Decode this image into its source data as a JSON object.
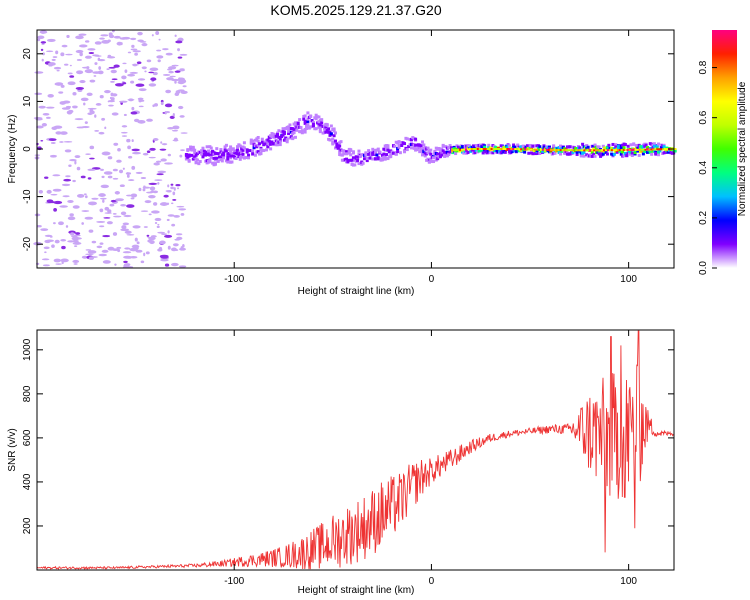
{
  "figure": {
    "title": "KOM5.2025.129.21.37.G20"
  },
  "chart_data": [
    {
      "type": "heatmap",
      "title": "KOM5.2025.129.21.37.G20",
      "xlabel": "Height of straight line (km)",
      "ylabel": "Frequency (Hz)",
      "xlim": [
        -200,
        123
      ],
      "ylim": [
        -25,
        25
      ],
      "x_ticks": [
        -100,
        0,
        100
      ],
      "y_ticks": [
        -20,
        -10,
        0,
        10,
        20
      ],
      "colorbar": {
        "label": "Normalized spectral amplitude",
        "range": [
          0,
          0.95
        ],
        "ticks": [
          0.0,
          0.2,
          0.4,
          0.6,
          0.8
        ],
        "tick_labels": [
          "0.0",
          "0.2",
          "0.4",
          "0.6",
          "0.8"
        ],
        "colormap": [
          "#ffffff",
          "#c080ff",
          "#8000ff",
          "#0000ff",
          "#00c0ff",
          "#00ff80",
          "#40ff00",
          "#c0ff00",
          "#ffff00",
          "#ffa000",
          "#ff2000",
          "#ff0080"
        ]
      },
      "ridge": {
        "x": [
          -125,
          -110,
          -95,
          -80,
          -70,
          -62,
          -55,
          -50,
          -45,
          -38,
          -30,
          -22,
          -15,
          -10,
          -6,
          -2,
          0,
          5,
          10,
          20,
          40,
          60,
          80,
          100,
          123
        ],
        "y": [
          -1,
          -1.5,
          -0.5,
          2,
          4,
          6,
          4.5,
          2.5,
          -1.5,
          -2,
          -1.5,
          -0.5,
          0.5,
          1.5,
          0.5,
          -1.5,
          -1.5,
          -0.5,
          -0.3,
          0,
          0,
          -0.2,
          -0.3,
          -0.2,
          0
        ]
      }
    },
    {
      "type": "line",
      "xlabel": "Height of straight line (km)",
      "ylabel": "SNR (v/v)",
      "xlim": [
        -200,
        123
      ],
      "ylim": [
        0,
        1090
      ],
      "x_ticks": [
        -100,
        0,
        100
      ],
      "y_ticks": [
        200,
        400,
        600,
        800,
        1000
      ],
      "color": "#ee3333",
      "envelope": {
        "x": [
          -200,
          -160,
          -140,
          -120,
          -105,
          -95,
          -85,
          -75,
          -65,
          -55,
          -45,
          -35,
          -25,
          -15,
          -10,
          -5,
          0,
          10,
          20,
          30,
          40,
          50,
          60,
          70,
          80,
          90,
          100,
          105,
          110,
          115,
          123
        ],
        "base": [
          10,
          10,
          15,
          20,
          30,
          40,
          50,
          60,
          80,
          110,
          150,
          190,
          250,
          320,
          380,
          420,
          450,
          500,
          560,
          600,
          620,
          630,
          640,
          640,
          630,
          600,
          620,
          640,
          660,
          620,
          620
        ],
        "noise": [
          5,
          5,
          6,
          8,
          15,
          25,
          35,
          50,
          80,
          110,
          140,
          150,
          160,
          130,
          110,
          90,
          60,
          50,
          30,
          20,
          15,
          15,
          20,
          25,
          200,
          300,
          300,
          300,
          60,
          15,
          10
        ]
      },
      "peaks": [
        {
          "x": 91,
          "y": 1060
        },
        {
          "x": 96,
          "y": 1020
        },
        {
          "x": 105,
          "y": 1085
        },
        {
          "x": 103,
          "y": 190
        },
        {
          "x": 88,
          "y": 80
        },
        {
          "x": 98,
          "y": 330
        }
      ]
    }
  ]
}
